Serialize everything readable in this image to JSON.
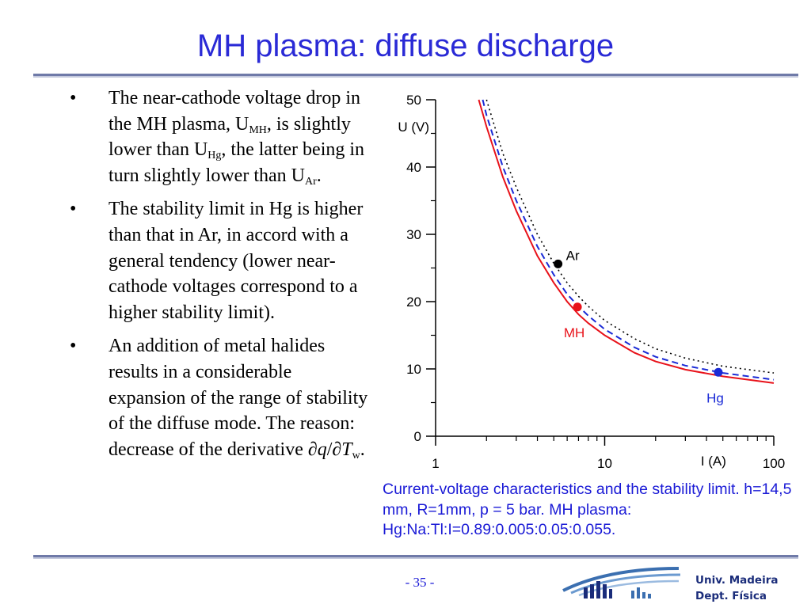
{
  "slide": {
    "title": "MH plasma: diffuse discharge",
    "page_number": "- 35 -",
    "institution": {
      "line1": "Univ. Madeira",
      "line2": "Dept. Física"
    }
  },
  "bullets": [
    {
      "marker": "•",
      "text": "The near-cathode voltage drop in the MH plasma, U<sub>MH</sub>, is slightly lower than U<sub>Hg</sub>, the latter being in turn slightly lower than U<sub>Ar</sub>."
    },
    {
      "marker": "•",
      "text": "The stability limit in Hg is higher than that in Ar, in accord with a general tendency (lower near-cathode voltages correspond to a higher stability limit)."
    },
    {
      "marker": "•",
      "text": "An addition of metal halides results in a considerable expansion of the range of stability of the diffuse mode. The reason: decrease of the derivative ∂<i>q</i>/∂<i>T</i><sub>w</sub>."
    }
  ],
  "caption": "Current-voltage characteristics and the stability limit. h=14,5 mm, R=1mm, p = 5 bar. MH plasma: Hg:Na:Tl:I=0.89:0.005:0.05:0.055.",
  "chart_data": {
    "type": "line",
    "xlabel": "I (A)",
    "ylabel": "U (V)",
    "xscale": "log",
    "xlim": [
      1,
      100
    ],
    "ylim": [
      0,
      50
    ],
    "x_tick_labels": [
      "1",
      "10",
      "100"
    ],
    "y_tick_labels": [
      "0",
      "10",
      "20",
      "30",
      "40",
      "50"
    ],
    "grid": false,
    "series": [
      {
        "style": "solid",
        "color": "#e8121a",
        "x": [
          1.8,
          2,
          2.5,
          3,
          4,
          5,
          6,
          7,
          8,
          10,
          15,
          20,
          30,
          50,
          100
        ],
        "y": [
          50,
          46,
          38.5,
          33.5,
          26.8,
          22.8,
          20,
          18.1,
          16.8,
          15,
          12.4,
          11.1,
          9.9,
          8.9,
          7.9
        ]
      },
      {
        "style": "dashed",
        "color": "#1a2ad6",
        "x": [
          1.9,
          2,
          2.5,
          3,
          4,
          5,
          6,
          7,
          8,
          10,
          15,
          20,
          30,
          50,
          100
        ],
        "y": [
          50,
          47.7,
          40,
          35,
          28.2,
          24,
          21.1,
          19.3,
          17.9,
          15.9,
          13.2,
          11.8,
          10.5,
          9.4,
          8.4
        ]
      },
      {
        "style": "dotted",
        "color": "#000000",
        "x": [
          2,
          2.5,
          3,
          4,
          5,
          6,
          7,
          8,
          10,
          15,
          20,
          30,
          50,
          100
        ],
        "y": [
          50,
          42,
          37,
          30,
          25.7,
          22.8,
          20.8,
          19.3,
          17.2,
          14.5,
          13,
          11.6,
          10.4,
          9.4
        ]
      }
    ],
    "points": [
      {
        "label": "Ar",
        "x": 5.3,
        "y": 25.6,
        "color": "#000000",
        "label_color": "#000000",
        "label_pos": "right"
      },
      {
        "label": "MH",
        "x": 6.9,
        "y": 19.2,
        "color": "#e8121a",
        "label_color": "#e8121a",
        "label_pos": "below"
      },
      {
        "label": "Hg",
        "x": 47,
        "y": 9.5,
        "color": "#1a2ad6",
        "label_color": "#1a2ad6",
        "label_pos": "below"
      }
    ]
  }
}
